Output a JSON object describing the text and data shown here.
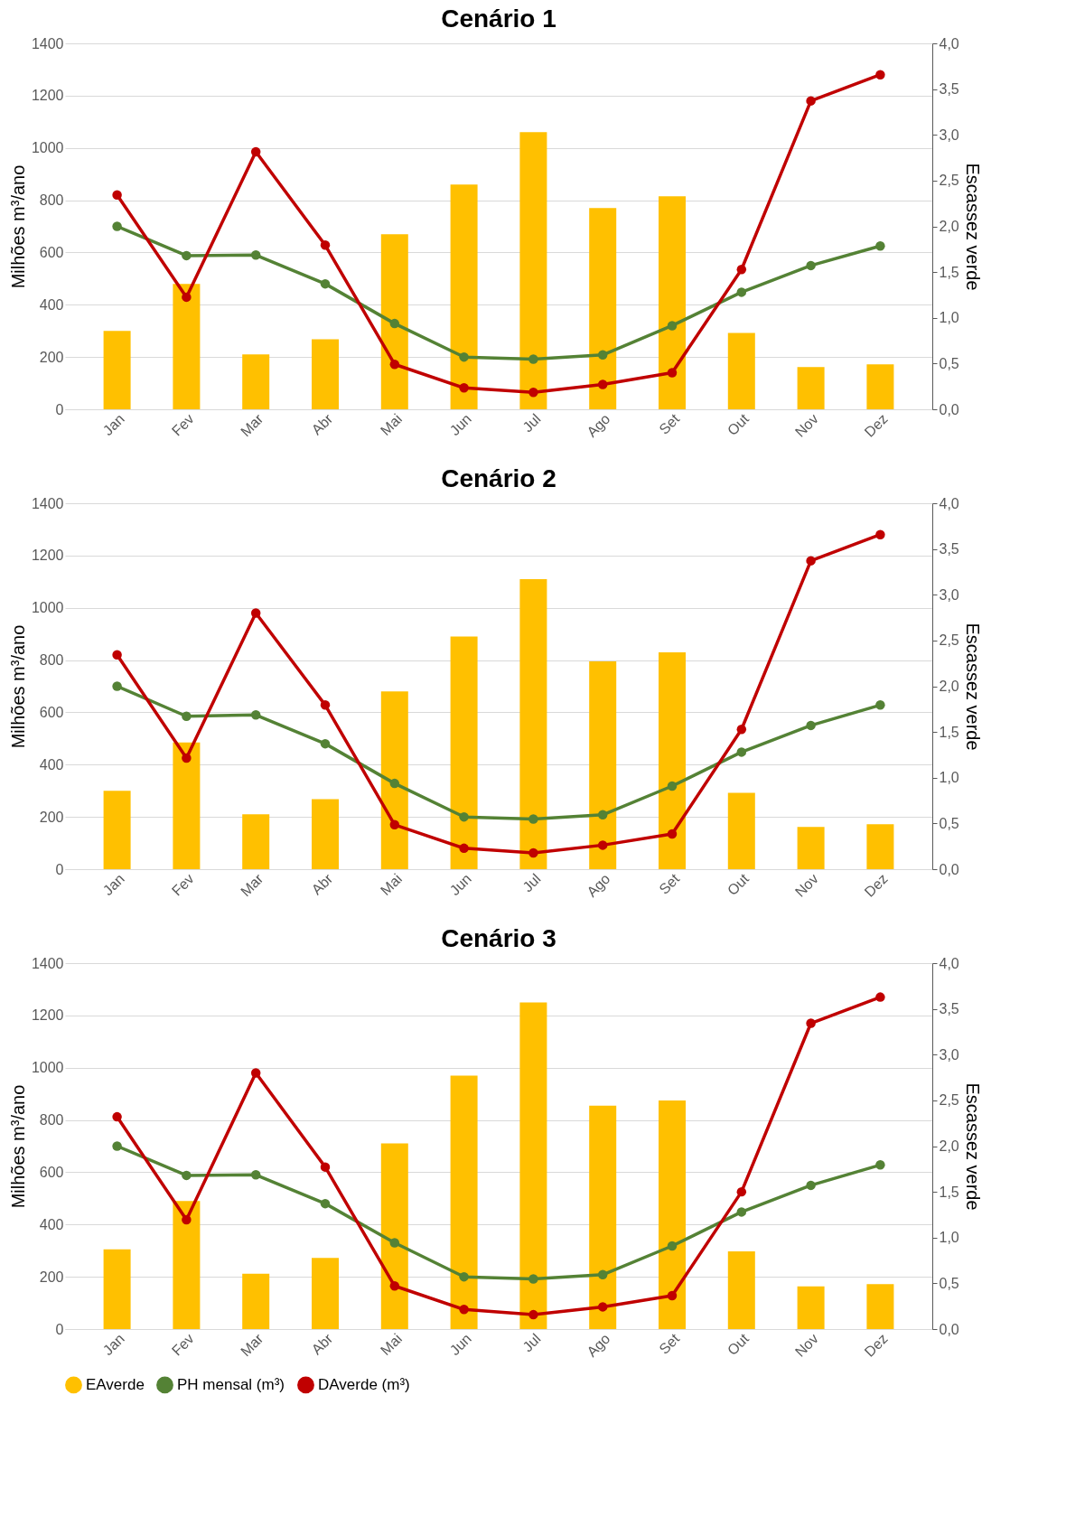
{
  "chart_data": [
    {
      "type": "bar",
      "title": "Cenário 1",
      "ylabel": "Milhões m³/ano",
      "y2label": "Escassez verde",
      "categories": [
        "Jan",
        "Fev",
        "Mar",
        "Abr",
        "Mai",
        "Jun",
        "Jul",
        "Ago",
        "Set",
        "Out",
        "Nov",
        "Dez"
      ],
      "series": [
        {
          "color": "#ffc000",
          "values": [
            300,
            480,
            210,
            268,
            670,
            860,
            1060,
            770,
            815,
            292,
            162,
            172
          ]
        },
        {
          "type": "line",
          "color": "#548235",
          "values": [
            700,
            588,
            590,
            480,
            328,
            200,
            192,
            208,
            320,
            448,
            550,
            625
          ]
        },
        {
          "type": "line",
          "color": "#c00000",
          "values": [
            820,
            429,
            985,
            628,
            172,
            82,
            65,
            95,
            140,
            535,
            1180,
            1280
          ]
        }
      ],
      "ylim": [
        0,
        1400
      ],
      "yticks": [
        0,
        200,
        400,
        600,
        800,
        1000,
        1200,
        1400
      ],
      "y2lim": [
        0,
        4
      ],
      "y2ticks": [
        {
          "value": 0,
          "label": "0,0"
        },
        {
          "value": 0.5,
          "label": "0,5"
        },
        {
          "value": 1,
          "label": "1,0"
        },
        {
          "value": 1.5,
          "label": "1,5"
        },
        {
          "value": 2,
          "label": "2,0"
        },
        {
          "value": 2.5,
          "label": "2,5"
        },
        {
          "value": 3,
          "label": "3,0"
        },
        {
          "value": 3.5,
          "label": "3,5"
        },
        {
          "value": 4,
          "label": "4,0"
        }
      ],
      "grid": "y",
      "marker": "circle"
    },
    {
      "type": "bar",
      "title": "Cenário 2",
      "ylabel": "Milhões m³/ano",
      "y2label": "Escassez verde",
      "categories": [
        "Jan",
        "Fev",
        "Mar",
        "Abr",
        "Mai",
        "Jun",
        "Jul",
        "Ago",
        "Set",
        "Out",
        "Nov",
        "Dez"
      ],
      "series": [
        {
          "color": "#ffc000",
          "values": [
            300,
            485,
            210,
            268,
            680,
            890,
            1110,
            795,
            830,
            292,
            162,
            172
          ]
        },
        {
          "type": "line",
          "color": "#548235",
          "values": [
            700,
            585,
            590,
            480,
            328,
            200,
            192,
            208,
            318,
            448,
            550,
            628
          ]
        },
        {
          "type": "line",
          "color": "#c00000",
          "values": [
            820,
            425,
            980,
            628,
            170,
            80,
            62,
            92,
            135,
            535,
            1180,
            1280
          ]
        }
      ],
      "ylim": [
        0,
        1400
      ],
      "yticks": [
        0,
        200,
        400,
        600,
        800,
        1000,
        1200,
        1400
      ],
      "y2lim": [
        0,
        4
      ],
      "y2ticks": [
        {
          "value": 0,
          "label": "0,0"
        },
        {
          "value": 0.5,
          "label": "0,5"
        },
        {
          "value": 1,
          "label": "1,0"
        },
        {
          "value": 1.5,
          "label": "1,5"
        },
        {
          "value": 2,
          "label": "2,0"
        },
        {
          "value": 2.5,
          "label": "2,5"
        },
        {
          "value": 3,
          "label": "3,0"
        },
        {
          "value": 3.5,
          "label": "3,5"
        },
        {
          "value": 4,
          "label": "4,0"
        }
      ],
      "grid": "y",
      "marker": "circle"
    },
    {
      "type": "bar",
      "title": "Cenário 3",
      "ylabel": "Milhões m³/ano",
      "y2label": "Escassez verde",
      "categories": [
        "Jan",
        "Fev",
        "Mar",
        "Abr",
        "Mai",
        "Jun",
        "Jul",
        "Ago",
        "Set",
        "Out",
        "Nov",
        "Dez"
      ],
      "series": [
        {
          "name": "EAverde",
          "color": "#ffc000",
          "values": [
            305,
            490,
            212,
            272,
            710,
            970,
            1250,
            855,
            875,
            297,
            163,
            172
          ]
        },
        {
          "type": "line",
          "name": "PH mensal (m³)",
          "color": "#548235",
          "values": [
            700,
            588,
            590,
            480,
            330,
            200,
            192,
            208,
            318,
            448,
            550,
            628
          ]
        },
        {
          "type": "line",
          "name": "DAverde (m³)",
          "color": "#c00000",
          "values": [
            812,
            418,
            980,
            620,
            165,
            75,
            55,
            85,
            128,
            525,
            1170,
            1270
          ]
        }
      ],
      "ylim": [
        0,
        1400
      ],
      "yticks": [
        0,
        200,
        400,
        600,
        800,
        1000,
        1200,
        1400
      ],
      "y2lim": [
        0,
        4
      ],
      "y2ticks": [
        {
          "value": 0,
          "label": "0,0"
        },
        {
          "value": 0.5,
          "label": "0,5"
        },
        {
          "value": 1,
          "label": "1,0"
        },
        {
          "value": 1.5,
          "label": "1,5"
        },
        {
          "value": 2,
          "label": "2,0"
        },
        {
          "value": 2.5,
          "label": "2,5"
        },
        {
          "value": 3,
          "label": "3,0"
        },
        {
          "value": 3.5,
          "label": "3,5"
        },
        {
          "value": 4,
          "label": "4,0"
        }
      ],
      "grid": "y",
      "marker": "circle",
      "legend": "bottom"
    }
  ]
}
